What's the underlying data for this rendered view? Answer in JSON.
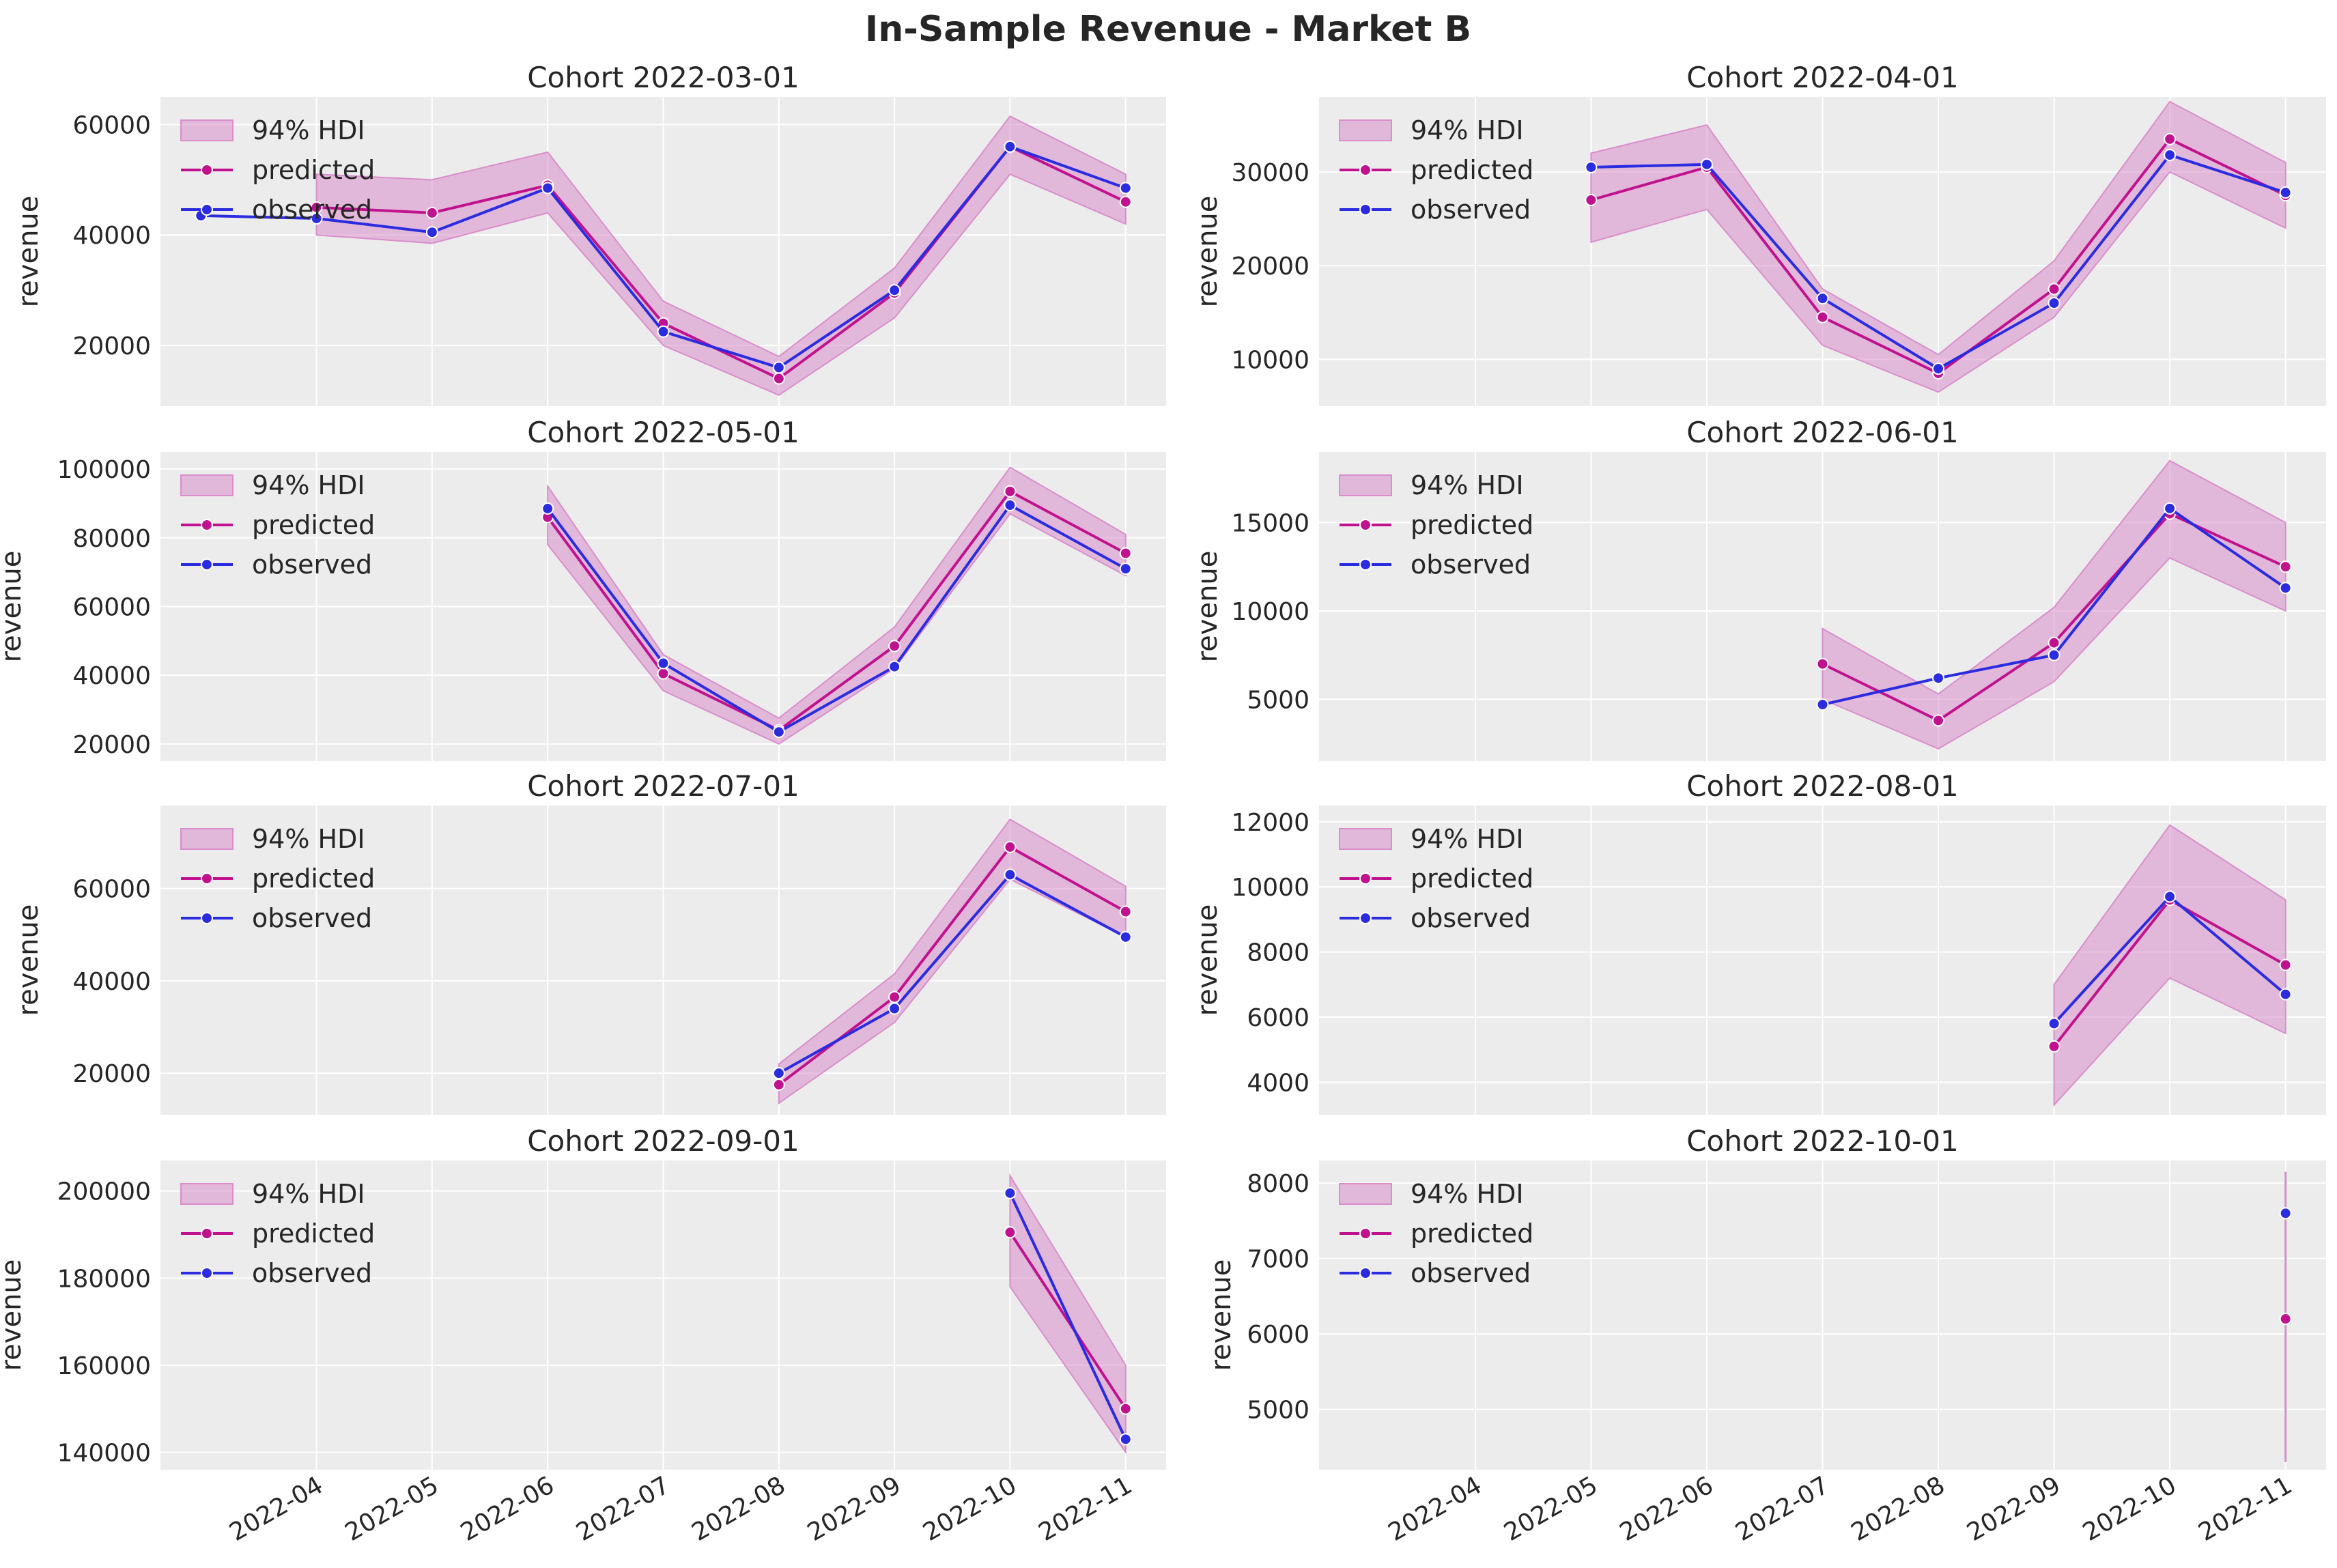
{
  "suptitle": "In-Sample Revenue - Market B",
  "colors": {
    "predicted": "#c0128e",
    "observed": "#2b2be0",
    "hdi_fill": "#d98ecb",
    "panel_bg": "#ececec",
    "grid": "#ffffff"
  },
  "legend": {
    "hdi_label": "94% HDI",
    "predicted_label": "predicted",
    "observed_label": "observed",
    "placement": "upper-left"
  },
  "x_tick_labels": [
    "2022-04",
    "2022-05",
    "2022-06",
    "2022-07",
    "2022-08",
    "2022-09",
    "2022-10",
    "2022-11"
  ],
  "chart_data": [
    {
      "type": "line",
      "title": "Cohort 2022-03-01",
      "ylabel": "revenue",
      "ylim": [
        9000,
        65000
      ],
      "yticks": [
        20000,
        40000,
        60000
      ],
      "x": [
        "2022-03-01",
        "2022-04-01",
        "2022-05-01",
        "2022-06-01",
        "2022-07-01",
        "2022-08-01",
        "2022-09-01",
        "2022-10-01",
        "2022-11-01"
      ],
      "series": [
        {
          "name": "predicted",
          "values": [
            null,
            45000,
            44000,
            49000,
            24000,
            14000,
            29500,
            56000,
            46000
          ]
        },
        {
          "name": "observed",
          "values": [
            43500,
            43000,
            40500,
            48500,
            22500,
            16000,
            30000,
            56000,
            48500
          ]
        }
      ],
      "hdi": {
        "lower": [
          null,
          40000,
          38500,
          44000,
          20000,
          11000,
          25000,
          51000,
          42000
        ],
        "upper": [
          null,
          51000,
          50000,
          55000,
          28000,
          18000,
          34000,
          61500,
          51000
        ]
      }
    },
    {
      "type": "line",
      "title": "Cohort 2022-04-01",
      "ylabel": "revenue",
      "ylim": [
        5000,
        38000
      ],
      "yticks": [
        10000,
        20000,
        30000
      ],
      "x": [
        "2022-04-01",
        "2022-05-01",
        "2022-06-01",
        "2022-07-01",
        "2022-08-01",
        "2022-09-01",
        "2022-10-01",
        "2022-11-01"
      ],
      "series": [
        {
          "name": "predicted",
          "values": [
            null,
            27000,
            30500,
            14500,
            8500,
            17500,
            33500,
            27500
          ]
        },
        {
          "name": "observed",
          "values": [
            null,
            30500,
            30800,
            16500,
            9000,
            16000,
            31800,
            27800
          ]
        }
      ],
      "hdi": {
        "lower": [
          null,
          22500,
          26000,
          11500,
          6500,
          14500,
          30000,
          24000
        ],
        "upper": [
          null,
          32000,
          35000,
          17500,
          10500,
          20500,
          37500,
          31000
        ]
      }
    },
    {
      "type": "line",
      "title": "Cohort 2022-05-01",
      "ylabel": "revenue",
      "ylim": [
        15000,
        105000
      ],
      "yticks": [
        20000,
        40000,
        60000,
        80000,
        100000
      ],
      "x": [
        "2022-04-01",
        "2022-05-01",
        "2022-06-01",
        "2022-07-01",
        "2022-08-01",
        "2022-09-01",
        "2022-10-01",
        "2022-11-01"
      ],
      "series": [
        {
          "name": "predicted",
          "values": [
            null,
            null,
            86000,
            40500,
            24000,
            48500,
            93500,
            75500
          ]
        },
        {
          "name": "observed",
          "values": [
            null,
            null,
            88500,
            43500,
            23500,
            42500,
            89500,
            71000
          ]
        }
      ],
      "hdi": {
        "lower": [
          null,
          null,
          78000,
          35500,
          20000,
          42000,
          87000,
          69000
        ],
        "upper": [
          null,
          null,
          95000,
          46000,
          27500,
          54000,
          100500,
          81000
        ]
      }
    },
    {
      "type": "line",
      "title": "Cohort 2022-06-01",
      "ylabel": "revenue",
      "ylim": [
        1500,
        19000
      ],
      "yticks": [
        5000,
        10000,
        15000
      ],
      "x": [
        "2022-04-01",
        "2022-05-01",
        "2022-06-01",
        "2022-07-01",
        "2022-08-01",
        "2022-09-01",
        "2022-10-01",
        "2022-11-01"
      ],
      "series": [
        {
          "name": "predicted",
          "values": [
            null,
            null,
            null,
            7000,
            3800,
            8200,
            15500,
            12500
          ]
        },
        {
          "name": "observed",
          "values": [
            null,
            null,
            null,
            4700,
            6200,
            7500,
            15800,
            11300
          ]
        }
      ],
      "hdi": {
        "lower": [
          null,
          null,
          null,
          5000,
          2200,
          6000,
          13000,
          10000
        ],
        "upper": [
          null,
          null,
          null,
          9000,
          5300,
          10200,
          18500,
          15000
        ]
      }
    },
    {
      "type": "line",
      "title": "Cohort 2022-07-01",
      "ylabel": "revenue",
      "ylim": [
        11000,
        78000
      ],
      "yticks": [
        20000,
        40000,
        60000
      ],
      "x": [
        "2022-04-01",
        "2022-05-01",
        "2022-06-01",
        "2022-07-01",
        "2022-08-01",
        "2022-09-01",
        "2022-10-01",
        "2022-11-01"
      ],
      "series": [
        {
          "name": "predicted",
          "values": [
            null,
            null,
            null,
            null,
            17500,
            36500,
            69000,
            55000
          ]
        },
        {
          "name": "observed",
          "values": [
            null,
            null,
            null,
            null,
            20000,
            34000,
            63000,
            49500
          ]
        }
      ],
      "hdi": {
        "lower": [
          null,
          null,
          null,
          null,
          13500,
          31000,
          62000,
          49500
        ],
        "upper": [
          null,
          null,
          null,
          null,
          22000,
          41500,
          75000,
          60500
        ]
      }
    },
    {
      "type": "line",
      "title": "Cohort 2022-08-01",
      "ylabel": "revenue",
      "ylim": [
        3000,
        12500
      ],
      "yticks": [
        4000,
        6000,
        8000,
        10000,
        12000
      ],
      "x": [
        "2022-04-01",
        "2022-05-01",
        "2022-06-01",
        "2022-07-01",
        "2022-08-01",
        "2022-09-01",
        "2022-10-01",
        "2022-11-01"
      ],
      "series": [
        {
          "name": "predicted",
          "values": [
            null,
            null,
            null,
            null,
            null,
            5100,
            9600,
            7600
          ]
        },
        {
          "name": "observed",
          "values": [
            null,
            null,
            null,
            null,
            null,
            5800,
            9700,
            6700
          ]
        }
      ],
      "hdi": {
        "lower": [
          null,
          null,
          null,
          null,
          null,
          3300,
          7200,
          5500
        ],
        "upper": [
          null,
          null,
          null,
          null,
          null,
          7000,
          11900,
          9600
        ]
      }
    },
    {
      "type": "line",
      "title": "Cohort 2022-09-01",
      "ylabel": "revenue",
      "ylim": [
        136000,
        207000
      ],
      "yticks": [
        140000,
        160000,
        180000,
        200000
      ],
      "x": [
        "2022-04-01",
        "2022-05-01",
        "2022-06-01",
        "2022-07-01",
        "2022-08-01",
        "2022-09-01",
        "2022-10-01",
        "2022-11-01"
      ],
      "series": [
        {
          "name": "predicted",
          "values": [
            null,
            null,
            null,
            null,
            null,
            null,
            190500,
            150000
          ]
        },
        {
          "name": "observed",
          "values": [
            null,
            null,
            null,
            null,
            null,
            null,
            199500,
            143000
          ]
        }
      ],
      "hdi": {
        "lower": [
          null,
          null,
          null,
          null,
          null,
          null,
          178000,
          140000
        ],
        "upper": [
          null,
          null,
          null,
          null,
          null,
          null,
          203500,
          160000
        ]
      }
    },
    {
      "type": "line",
      "title": "Cohort 2022-10-01",
      "ylabel": "revenue",
      "ylim": [
        4200,
        8300
      ],
      "yticks": [
        5000,
        6000,
        7000,
        8000
      ],
      "x": [
        "2022-04-01",
        "2022-05-01",
        "2022-06-01",
        "2022-07-01",
        "2022-08-01",
        "2022-09-01",
        "2022-10-01",
        "2022-11-01"
      ],
      "series": [
        {
          "name": "predicted",
          "values": [
            null,
            null,
            null,
            null,
            null,
            null,
            null,
            6200
          ]
        },
        {
          "name": "observed",
          "values": [
            null,
            null,
            null,
            null,
            null,
            null,
            null,
            7600
          ]
        }
      ],
      "hdi": {
        "lower": [
          null,
          null,
          null,
          null,
          null,
          null,
          null,
          4300
        ],
        "upper": [
          null,
          null,
          null,
          null,
          null,
          null,
          null,
          8150
        ]
      }
    }
  ]
}
